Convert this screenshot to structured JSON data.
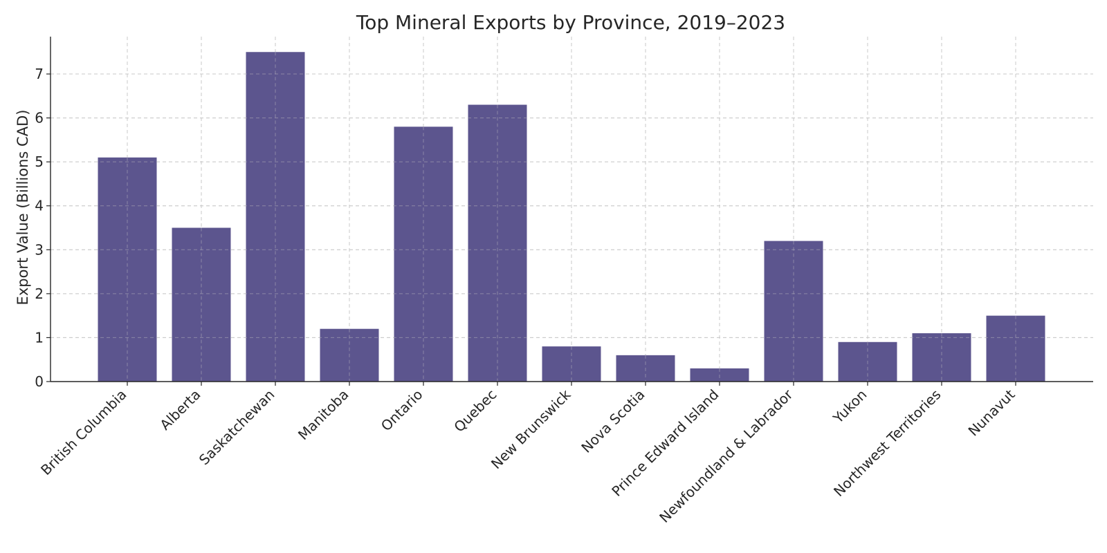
{
  "chart_data": {
    "type": "bar",
    "title": "Top Mineral Exports by Province, 2019–2023",
    "xlabel": "",
    "ylabel": "Export Value (Billions CAD)",
    "categories": [
      "British Columbia",
      "Alberta",
      "Saskatchewan",
      "Manitoba",
      "Ontario",
      "Quebec",
      "New Brunswick",
      "Nova Scotia",
      "Prince Edward Island",
      "Newfoundland & Labrador",
      "Yukon",
      "Northwest Territories",
      "Nunavut"
    ],
    "values": [
      5.1,
      3.5,
      7.5,
      1.2,
      5.8,
      6.3,
      0.8,
      0.6,
      0.3,
      3.2,
      0.9,
      1.1,
      1.5
    ],
    "ylim": [
      0,
      7.85
    ],
    "yticks": [
      0,
      1,
      2,
      3,
      4,
      5,
      6,
      7
    ],
    "grid": true,
    "bar_color": "#574f8a",
    "grid_color": "#c8c8c8",
    "text_color": "#262626"
  }
}
